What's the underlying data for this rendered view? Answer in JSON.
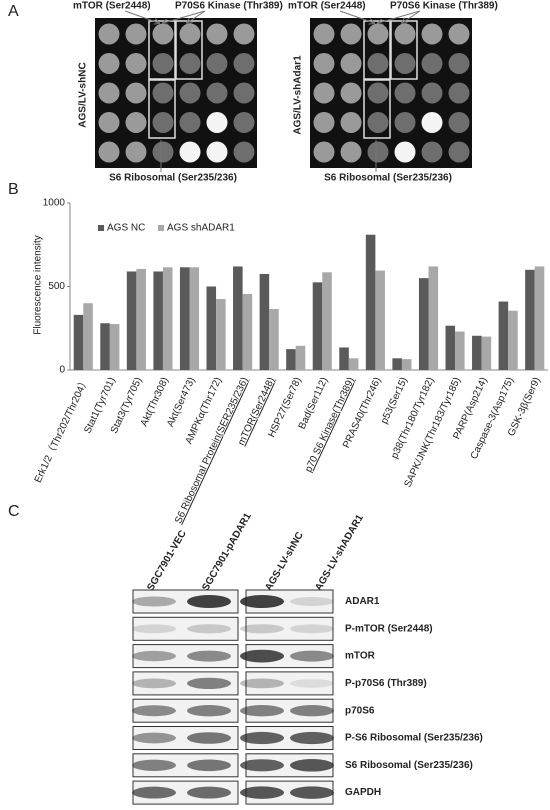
{
  "panel_a": {
    "label": "A",
    "top_labels": [
      "mTOR (Ser2448)",
      "P70S6 Kinase (Thr389)",
      "mTOR (Ser2448)",
      "P70S6 Kinase (Thr389)"
    ],
    "bottom_labels": [
      "S6 Ribosomal (Ser235/236)",
      "S6 Ribosomal (Ser235/236)"
    ],
    "side_labels": [
      "AGS/LV-shNC",
      "AGS/LV-shAdar1"
    ]
  },
  "panel_b": {
    "label": "B"
  },
  "chart_data": {
    "type": "bar",
    "y_label": "Fluorescence intensity",
    "categories": [
      "Erk1/2（Thr202/Thr204）",
      "Stat1(Tyr701)",
      "Stat3(Tyr705)",
      "Akt(Thr308)",
      "Akt(Ser473)",
      "AMPKα(Thr172)",
      "S6 Ribosomal Protein(SER235/236)",
      "mTOR(Ser2448)",
      "HSP27(Ser78)",
      "Bad(Ser112)",
      "p70 S6 Kinase(Thr389)",
      "PRAS40(Thr246)",
      "p53(Ser15)",
      "p38(Thr180/Tyr182)",
      "SAPK/JNK(Thr183/Tyr185)",
      "PARP(Asp214)",
      "Caspase-3(Asp175)",
      "GSK-3β(Ser9)"
    ],
    "series": [
      {
        "name": "AGS NC",
        "color": "#5a5a5a",
        "values": [
          330,
          280,
          590,
          590,
          615,
          500,
          620,
          575,
          125,
          525,
          135,
          810,
          70,
          550,
          265,
          205,
          410,
          600
        ]
      },
      {
        "name": "AGS shADAR1",
        "color": "#a8a8a8",
        "values": [
          400,
          275,
          605,
          615,
          615,
          425,
          455,
          365,
          145,
          585,
          70,
          595,
          65,
          620,
          230,
          200,
          355,
          620
        ]
      }
    ],
    "ylim": [
      0,
      1000
    ],
    "yticks": [
      0,
      500,
      1000
    ],
    "grid": false,
    "legend": "top-left"
  },
  "panel_c": {
    "label": "C",
    "lanes": [
      "SGC7901-VEC",
      "SGC7901-pADAR1",
      "AGS-LV-shNC",
      "AGS-LV-shADAR1"
    ],
    "rows": [
      "ADAR1",
      "P-mTOR (Ser2448)",
      "mTOR",
      "P-p70S6 (Thr389)",
      "p70S6",
      "P-S6 Ribosomal (Ser235/236)",
      "S6 Ribosomal (Ser235/236)",
      "GAPDH"
    ]
  }
}
